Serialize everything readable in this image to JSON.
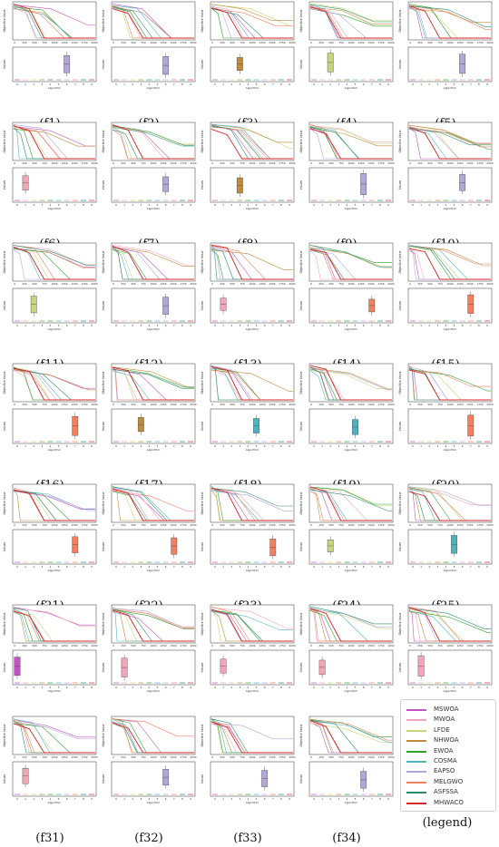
{
  "legend": {
    "caption": "(legend)",
    "items": [
      {
        "name": "MSWOA",
        "color": "#c154c1"
      },
      {
        "name": "MWOA",
        "color": "#f3a6b8"
      },
      {
        "name": "LFDE",
        "color": "#c7d67a"
      },
      {
        "name": "NHWOA",
        "color": "#c08b3c"
      },
      {
        "name": "EWOA",
        "color": "#2ca02c"
      },
      {
        "name": "COSMA",
        "color": "#4fb3bf"
      },
      {
        "name": "EAPSO",
        "color": "#b4a6d8"
      },
      {
        "name": "MELGWO",
        "color": "#f08060"
      },
      {
        "name": "ASFSSA",
        "color": "#2a8a6a"
      },
      {
        "name": "MHWACO",
        "color": "#d62728"
      }
    ]
  },
  "axis_text": {
    "conv_ylabel": "Objective Value",
    "box_ylabel": "Values",
    "box_xlabel": "Algorithm",
    "conv_xticks": [
      "0",
      "250",
      "500",
      "750",
      "1000",
      "1250",
      "1500",
      "1750",
      "2000"
    ],
    "box_xticks": [
      "0",
      "1",
      "2",
      "3",
      "4",
      "5",
      "6",
      "7",
      "8",
      "9"
    ]
  },
  "chart_data": [
    {
      "caption": "(f1)",
      "type": "line",
      "box_color": "#b4a6d8",
      "box_index": 6
    },
    {
      "caption": "(f2)",
      "type": "line",
      "box_color": "#b4a6d8",
      "box_index": 6
    },
    {
      "caption": "(f3)",
      "type": "line",
      "box_color": "#c08b3c",
      "box_index": 3
    },
    {
      "caption": "(f4)",
      "type": "line",
      "box_color": "#c7d67a",
      "box_index": 2
    },
    {
      "caption": "(f5)",
      "type": "line",
      "box_color": "#b4a6d8",
      "box_index": 6
    },
    {
      "caption": "(f6)",
      "type": "line",
      "box_color": "#f3a6b8",
      "box_index": 1
    },
    {
      "caption": "(f7)",
      "type": "line",
      "box_color": "#b4a6d8",
      "box_index": 6
    },
    {
      "caption": "(f8)",
      "type": "line",
      "box_color": "#c08b3c",
      "box_index": 3
    },
    {
      "caption": "(f9)",
      "type": "line",
      "box_color": "#b4a6d8",
      "box_index": 6
    },
    {
      "caption": "(f10)",
      "type": "line",
      "box_color": "#b4a6d8",
      "box_index": 6
    },
    {
      "caption": "(f11)",
      "type": "line",
      "box_color": "#c7d67a",
      "box_index": 2
    },
    {
      "caption": "(f12)",
      "type": "line",
      "box_color": "#b4a6d8",
      "box_index": 6
    },
    {
      "caption": "(f13)",
      "type": "line",
      "box_color": "#f3a6b8",
      "box_index": 1
    },
    {
      "caption": "(f14)",
      "type": "line",
      "box_color": "#f08060",
      "box_index": 7
    },
    {
      "caption": "(f15)",
      "type": "line",
      "box_color": "#f08060",
      "box_index": 7
    },
    {
      "caption": "(f16)",
      "type": "line",
      "box_color": "#f08060",
      "box_index": 7
    },
    {
      "caption": "(f17)",
      "type": "line",
      "box_color": "#c08b3c",
      "box_index": 3
    },
    {
      "caption": "(f18)",
      "type": "line",
      "box_color": "#4fb3bf",
      "box_index": 5
    },
    {
      "caption": "(f19)",
      "type": "line",
      "box_color": "#4fb3bf",
      "box_index": 5
    },
    {
      "caption": "(f20)",
      "type": "line",
      "box_color": "#f08060",
      "box_index": 7
    },
    {
      "caption": "(f21)",
      "type": "line",
      "box_color": "#f08060",
      "box_index": 7
    },
    {
      "caption": "(f22)",
      "type": "line",
      "box_color": "#f08060",
      "box_index": 7
    },
    {
      "caption": "(f23)",
      "type": "line",
      "box_color": "#f08060",
      "box_index": 7
    },
    {
      "caption": "(f24)",
      "type": "line",
      "box_color": "#c7d67a",
      "box_index": 2
    },
    {
      "caption": "(f25)",
      "type": "line",
      "box_color": "#4fb3bf",
      "box_index": 5
    },
    {
      "caption": "(f26)",
      "type": "line",
      "box_color": "#c154c1",
      "box_index": 0
    },
    {
      "caption": "(f27)",
      "type": "line",
      "box_color": "#f3a6b8",
      "box_index": 1
    },
    {
      "caption": "(f28)",
      "type": "line",
      "box_color": "#f3a6b8",
      "box_index": 1
    },
    {
      "caption": "(f29)",
      "type": "line",
      "box_color": "#f3a6b8",
      "box_index": 1
    },
    {
      "caption": "(f30)",
      "type": "line",
      "box_color": "#f3a6b8",
      "box_index": 1
    },
    {
      "caption": "(f31)",
      "type": "line",
      "box_color": "#f3a6b8",
      "box_index": 1
    },
    {
      "caption": "(f32)",
      "type": "line",
      "box_color": "#b4a6d8",
      "box_index": 6
    },
    {
      "caption": "(f33)",
      "type": "line",
      "box_color": "#b4a6d8",
      "box_index": 6
    },
    {
      "caption": "(f34)",
      "type": "line",
      "box_color": "#b4a6d8",
      "box_index": 6
    }
  ]
}
